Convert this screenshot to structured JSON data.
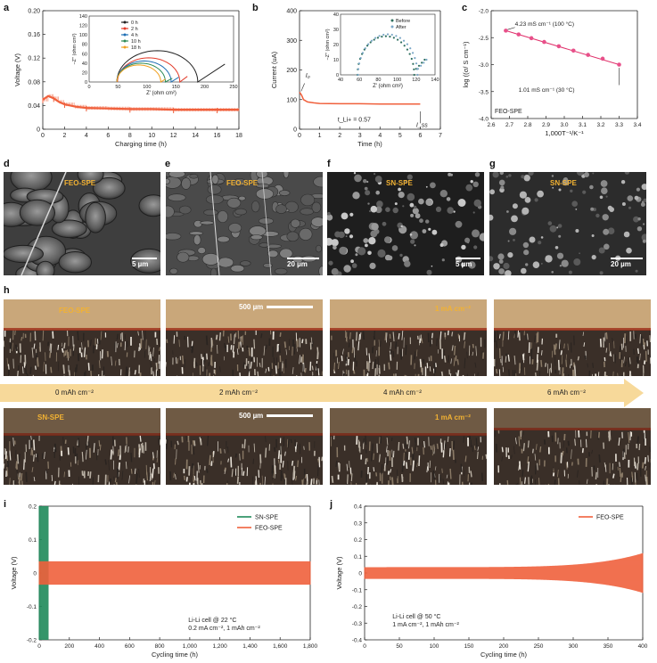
{
  "panels": {
    "a": {
      "letter": "a"
    },
    "b": {
      "letter": "b"
    },
    "c": {
      "letter": "c"
    },
    "d": {
      "letter": "d",
      "label": "FEO-SPE",
      "scale": "5 µm"
    },
    "e": {
      "letter": "e",
      "label": "FEO-SPE",
      "scale": "20 µm"
    },
    "f": {
      "letter": "f",
      "label": "SN-SPE",
      "scale": "5 µm"
    },
    "g": {
      "letter": "g",
      "label": "SN-SPE",
      "scale": "20 µm"
    },
    "h": {
      "letter": "h",
      "top_label": "FEO-SPE",
      "bottom_label": "SN-SPE",
      "scale": "500 µm",
      "current": "1 mA cm⁻²",
      "stages": [
        "0 mAh cm⁻²",
        "2 mAh cm⁻²",
        "4 mAh cm⁻²",
        "6 mAh cm⁻²"
      ]
    },
    "i": {
      "letter": "i"
    },
    "j": {
      "letter": "j"
    }
  },
  "colors": {
    "feo": "#f0603c",
    "sn": "#1f8a5a",
    "arrow": "#f7d99a",
    "tag": "#f2b233"
  },
  "chart_data": [
    {
      "id": "a",
      "type": "line",
      "xlabel": "Charging time (h)",
      "ylabel": "Voltage (V)",
      "xlim": [
        0,
        18
      ],
      "ylim": [
        0,
        0.2
      ],
      "xticks": [
        0,
        2,
        4,
        6,
        8,
        10,
        12,
        14,
        16,
        18
      ],
      "yticks": [
        "0",
        "0.04",
        "0.08",
        "0.12",
        "0.16",
        "0.20"
      ],
      "series": [
        {
          "x": [
            0,
            0.5,
            1,
            1.5,
            2,
            3,
            4,
            6,
            8,
            10,
            12,
            14,
            16,
            18
          ],
          "y": [
            0.05,
            0.056,
            0.052,
            0.046,
            0.042,
            0.038,
            0.036,
            0.035,
            0.034,
            0.034,
            0.033,
            0.033,
            0.033,
            0.033
          ]
        }
      ],
      "inset": {
        "type": "line",
        "xlabel": "Z′ (ohm cm²)",
        "ylabel": "−Z″ (ohm cm²)",
        "xlim": [
          0,
          250
        ],
        "ylim": [
          0,
          140
        ],
        "xticks": [
          0,
          50,
          100,
          150,
          200,
          250
        ],
        "yticks": [
          0,
          20,
          40,
          60,
          80,
          100,
          120,
          140
        ],
        "series": [
          {
            "name": "0 h",
            "color": "#222222",
            "center": 118,
            "radius": 70,
            "tail": [
              [
                188,
                0
              ],
              [
                235,
                38
              ]
            ]
          },
          {
            "name": "2 h",
            "color": "#e23b2a",
            "center": 103,
            "radius": 54,
            "tail": [
              [
                157,
                0
              ],
              [
                170,
                12
              ]
            ]
          },
          {
            "name": "4 h",
            "color": "#1f6fb4",
            "center": 95,
            "radius": 47,
            "tail": [
              [
                142,
                0
              ],
              [
                155,
                10
              ]
            ]
          },
          {
            "name": "10 h",
            "color": "#2e8b57",
            "center": 90,
            "radius": 42,
            "tail": [
              [
                132,
                0
              ],
              [
                144,
                8
              ]
            ]
          },
          {
            "name": "18 h",
            "color": "#f0a020",
            "center": 86,
            "radius": 38,
            "tail": [
              [
                124,
                0
              ],
              [
                132,
                6
              ]
            ]
          }
        ]
      }
    },
    {
      "id": "b",
      "type": "line",
      "xlabel": "Time (h)",
      "ylabel": "Current (uA)",
      "xlim": [
        0,
        7
      ],
      "ylim": [
        0,
        400
      ],
      "xticks": [
        0,
        1,
        2,
        3,
        4,
        5,
        6,
        7
      ],
      "yticks": [
        0,
        100,
        200,
        300,
        400
      ],
      "series": [
        {
          "x": [
            0,
            0.1,
            0.2,
            0.4,
            0.7,
            1,
            2,
            3,
            4,
            5,
            6
          ],
          "y": [
            125,
            115,
            100,
            92,
            89,
            87,
            86,
            86,
            85,
            85,
            85
          ]
        }
      ],
      "annotations": {
        "i0": "I₀",
        "iss": "I_ss",
        "t": "t_Li+ = 0.57"
      },
      "inset": {
        "type": "scatter",
        "xlabel": "Z′ (ohm cm²)",
        "ylabel": "−Z″ (ohm cm²)",
        "xlim": [
          40,
          140
        ],
        "ylim": [
          0,
          40
        ],
        "xticks": [
          40,
          60,
          80,
          100,
          120,
          140
        ],
        "yticks": [
          0,
          10,
          20,
          30,
          40
        ],
        "series": [
          {
            "name": "Before",
            "color": "#2e6f5e"
          },
          {
            "name": "After",
            "color": "#7aa7c7"
          }
        ]
      }
    },
    {
      "id": "c",
      "type": "scatter",
      "title": "FEO-SPE",
      "xlabel": "1,000T⁻¹/K⁻¹",
      "ylabel": "log ((σ/ S cm⁻¹)",
      "xlim": [
        2.6,
        3.4
      ],
      "ylim": [
        -4.0,
        -2.0
      ],
      "xticks": [
        "2.6",
        "2.7",
        "2.8",
        "2.9",
        "3.0",
        "3.1",
        "3.2",
        "3.3",
        "3.4"
      ],
      "yticks": [
        "-2.0",
        "-2.5",
        "-3.0",
        "-3.5",
        "-4.0"
      ],
      "x": [
        2.68,
        2.75,
        2.82,
        2.89,
        2.97,
        3.05,
        3.13,
        3.21,
        3.3
      ],
      "y": [
        -2.37,
        -2.44,
        -2.51,
        -2.58,
        -2.66,
        -2.74,
        -2.82,
        -2.89,
        -3.0
      ],
      "annotations": [
        "4.23 mS cm⁻¹ (100 °C)",
        "1.01 mS cm⁻¹ (30 °C)"
      ]
    },
    {
      "id": "i",
      "type": "line",
      "xlabel": "Cycling time (h)",
      "ylabel": "Voltage (V)",
      "xlim": [
        0,
        1800
      ],
      "ylim": [
        -0.2,
        0.2
      ],
      "xticks": [
        "0",
        "200",
        "400",
        "600",
        "800",
        "1,000",
        "1,200",
        "1,400",
        "1,600",
        "1,800"
      ],
      "yticks": [
        "-0.2",
        "-0.1",
        "0",
        "0.1",
        "0.2"
      ],
      "series": [
        {
          "name": "SN-SPE",
          "color": "#1f8a5a",
          "amplitude": 0.2,
          "x_end": 60
        },
        {
          "name": "FEO-SPE",
          "color": "#f0603c",
          "amplitude": 0.035,
          "x_end": 1800
        }
      ],
      "annotations": [
        "Li-Li cell @ 22 °C",
        "0.2 mA cm⁻², 1 mAh cm⁻²"
      ]
    },
    {
      "id": "j",
      "type": "line",
      "xlabel": "Cycling time (h)",
      "ylabel": "Voltage (V)",
      "xlim": [
        0,
        400
      ],
      "ylim": [
        -0.4,
        0.4
      ],
      "xticks": [
        0,
        50,
        100,
        150,
        200,
        250,
        300,
        350,
        400
      ],
      "yticks": [
        "-0.4",
        "-0.3",
        "-0.2",
        "-0.1",
        "0",
        "0.1",
        "0.2",
        "0.3",
        "0.4"
      ],
      "series": [
        {
          "name": "FEO-SPE",
          "color": "#f0603c",
          "amplitude": 0.035,
          "x_end": 400
        }
      ],
      "annotations": [
        "Li-Li cell @ 50 °C",
        "1 mA cm⁻², 1 mAh cm⁻²"
      ]
    }
  ]
}
